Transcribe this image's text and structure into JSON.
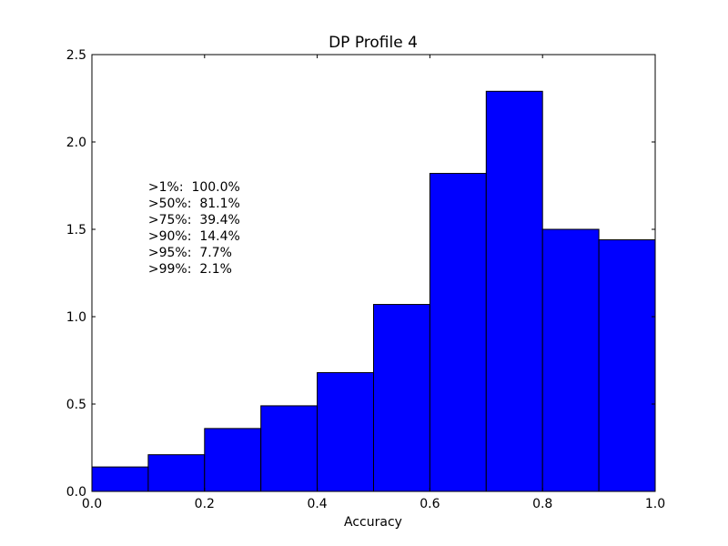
{
  "chart_data": {
    "type": "bar",
    "title": "DP Profile 4",
    "xlabel": "Accuracy",
    "ylabel": "",
    "xlim": [
      0.0,
      1.0
    ],
    "ylim": [
      0.0,
      2.5
    ],
    "grid": false,
    "bin_edges": [
      0.0,
      0.1,
      0.2,
      0.3,
      0.4,
      0.5,
      0.6,
      0.7,
      0.8,
      0.9,
      1.0
    ],
    "values": [
      0.14,
      0.21,
      0.36,
      0.49,
      0.68,
      1.07,
      1.82,
      2.29,
      1.5,
      1.44
    ],
    "bar_color": "#0000ff",
    "xticks": [
      "0.0",
      "0.2",
      "0.4",
      "0.6",
      "0.8",
      "1.0"
    ],
    "yticks": [
      "0.0",
      "0.5",
      "1.0",
      "1.5",
      "2.0",
      "2.5"
    ],
    "annotations": [
      ">1%:  100.0%",
      ">50%:  81.1%",
      ">75%:  39.4%",
      ">90%:  14.4%",
      ">95%:  7.7%",
      ">99%:  2.1%"
    ]
  }
}
